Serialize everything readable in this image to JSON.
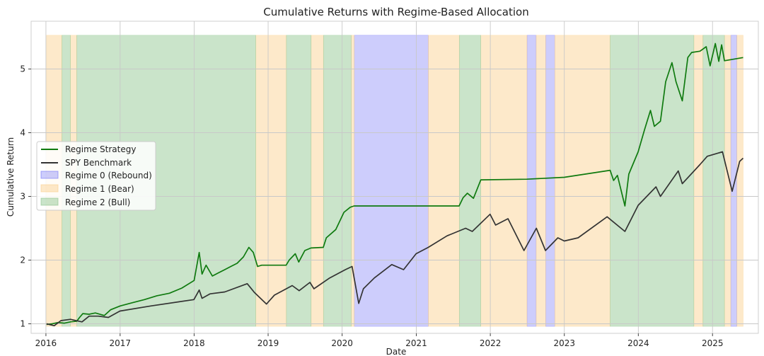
{
  "chart_data": {
    "type": "line",
    "title": "Cumulative Returns with Regime-Based Allocation",
    "xlabel": "Date",
    "ylabel": "Cumulative Return",
    "xlim": [
      "2015-10-20",
      "2025-08-15"
    ],
    "ylim": [
      0.85,
      5.75
    ],
    "x_ticks": [
      "2016",
      "2017",
      "2018",
      "2019",
      "2020",
      "2021",
      "2022",
      "2023",
      "2024",
      "2025"
    ],
    "y_ticks": [
      1,
      2,
      3,
      4,
      5
    ],
    "grid": true,
    "legend_position": "center-left",
    "series": [
      {
        "name": "Regime Strategy",
        "color": "#0f7a0f",
        "points": [
          [
            "2016-01-04",
            0.99
          ],
          [
            "2016-02-01",
            1.0
          ],
          [
            "2016-03-01",
            1.02
          ],
          [
            "2016-04-01",
            1.01
          ],
          [
            "2016-05-01",
            1.03
          ],
          [
            "2016-06-01",
            1.04
          ],
          [
            "2016-06-15",
            1.1
          ],
          [
            "2016-07-01",
            1.16
          ],
          [
            "2016-08-01",
            1.15
          ],
          [
            "2016-09-01",
            1.17
          ],
          [
            "2016-10-15",
            1.13
          ],
          [
            "2016-11-15",
            1.22
          ],
          [
            "2017-01-01",
            1.28
          ],
          [
            "2017-03-01",
            1.33
          ],
          [
            "2017-05-01",
            1.38
          ],
          [
            "2017-07-01",
            1.44
          ],
          [
            "2017-09-01",
            1.48
          ],
          [
            "2017-11-01",
            1.56
          ],
          [
            "2018-01-01",
            1.68
          ],
          [
            "2018-01-26",
            2.12
          ],
          [
            "2018-02-09",
            1.78
          ],
          [
            "2018-03-01",
            1.92
          ],
          [
            "2018-04-01",
            1.75
          ],
          [
            "2018-05-01",
            1.8
          ],
          [
            "2018-06-01",
            1.85
          ],
          [
            "2018-07-01",
            1.9
          ],
          [
            "2018-08-01",
            1.95
          ],
          [
            "2018-09-01",
            2.05
          ],
          [
            "2018-09-28",
            2.2
          ],
          [
            "2018-10-20",
            2.12
          ],
          [
            "2018-11-10",
            1.9
          ],
          [
            "2018-11-30",
            1.92
          ],
          [
            "2019-03-31",
            1.92
          ],
          [
            "2019-04-15",
            2.0
          ],
          [
            "2019-05-15",
            2.1
          ],
          [
            "2019-06-01",
            1.97
          ],
          [
            "2019-07-01",
            2.15
          ],
          [
            "2019-07-31",
            2.19
          ],
          [
            "2019-09-30",
            2.2
          ],
          [
            "2019-10-15",
            2.35
          ],
          [
            "2019-12-01",
            2.48
          ],
          [
            "2020-01-10",
            2.75
          ],
          [
            "2020-02-10",
            2.83
          ],
          [
            "2020-02-29",
            2.85
          ],
          [
            "2021-07-31",
            2.85
          ],
          [
            "2021-08-20",
            2.98
          ],
          [
            "2021-09-10",
            3.05
          ],
          [
            "2021-10-10",
            2.97
          ],
          [
            "2021-11-15",
            3.26
          ],
          [
            "2022-06-30",
            3.27
          ],
          [
            "2023-01-01",
            3.3
          ],
          [
            "2023-08-15",
            3.41
          ],
          [
            "2023-09-01",
            3.25
          ],
          [
            "2023-09-20",
            3.33
          ],
          [
            "2023-10-27",
            2.85
          ],
          [
            "2023-11-15",
            3.35
          ],
          [
            "2023-12-31",
            3.7
          ],
          [
            "2024-02-01",
            4.05
          ],
          [
            "2024-03-01",
            4.35
          ],
          [
            "2024-03-20",
            4.1
          ],
          [
            "2024-04-19",
            4.18
          ],
          [
            "2024-05-15",
            4.8
          ],
          [
            "2024-06-15",
            5.1
          ],
          [
            "2024-07-05",
            4.8
          ],
          [
            "2024-08-05",
            4.5
          ],
          [
            "2024-09-01",
            5.18
          ],
          [
            "2024-09-20",
            5.26
          ],
          [
            "2024-10-31",
            5.28
          ],
          [
            "2024-12-01",
            5.35
          ],
          [
            "2024-12-20",
            5.05
          ],
          [
            "2025-01-15",
            5.4
          ],
          [
            "2025-02-01",
            5.12
          ],
          [
            "2025-02-15",
            5.38
          ],
          [
            "2025-03-01",
            5.13
          ],
          [
            "2025-06-01",
            5.18
          ]
        ]
      },
      {
        "name": "SPY Benchmark",
        "color": "#333333",
        "points": [
          [
            "2016-01-04",
            1.0
          ],
          [
            "2016-02-11",
            0.97
          ],
          [
            "2016-03-15",
            1.05
          ],
          [
            "2016-05-01",
            1.07
          ],
          [
            "2016-06-27",
            1.03
          ],
          [
            "2016-08-01",
            1.12
          ],
          [
            "2016-09-15",
            1.12
          ],
          [
            "2016-11-04",
            1.1
          ],
          [
            "2016-12-31",
            1.2
          ],
          [
            "2017-06-01",
            1.28
          ],
          [
            "2017-12-31",
            1.38
          ],
          [
            "2018-01-26",
            1.53
          ],
          [
            "2018-02-09",
            1.4
          ],
          [
            "2018-03-20",
            1.47
          ],
          [
            "2018-06-01",
            1.5
          ],
          [
            "2018-09-20",
            1.63
          ],
          [
            "2018-10-26",
            1.49
          ],
          [
            "2018-12-24",
            1.31
          ],
          [
            "2019-02-01",
            1.45
          ],
          [
            "2019-04-30",
            1.6
          ],
          [
            "2019-06-03",
            1.52
          ],
          [
            "2019-07-26",
            1.65
          ],
          [
            "2019-08-15",
            1.55
          ],
          [
            "2019-11-01",
            1.72
          ],
          [
            "2020-01-17",
            1.85
          ],
          [
            "2020-02-19",
            1.9
          ],
          [
            "2020-03-23",
            1.32
          ],
          [
            "2020-04-15",
            1.55
          ],
          [
            "2020-06-08",
            1.72
          ],
          [
            "2020-09-02",
            1.93
          ],
          [
            "2020-10-30",
            1.85
          ],
          [
            "2020-12-31",
            2.1
          ],
          [
            "2021-03-01",
            2.2
          ],
          [
            "2021-06-01",
            2.38
          ],
          [
            "2021-09-01",
            2.5
          ],
          [
            "2021-10-04",
            2.45
          ],
          [
            "2021-12-31",
            2.72
          ],
          [
            "2022-01-27",
            2.55
          ],
          [
            "2022-03-29",
            2.65
          ],
          [
            "2022-06-16",
            2.15
          ],
          [
            "2022-08-16",
            2.5
          ],
          [
            "2022-09-30",
            2.15
          ],
          [
            "2022-11-30",
            2.35
          ],
          [
            "2023-01-01",
            2.3
          ],
          [
            "2023-03-10",
            2.35
          ],
          [
            "2023-07-31",
            2.68
          ],
          [
            "2023-10-27",
            2.45
          ],
          [
            "2023-12-31",
            2.86
          ],
          [
            "2024-03-28",
            3.15
          ],
          [
            "2024-04-19",
            3.0
          ],
          [
            "2024-07-16",
            3.4
          ],
          [
            "2024-08-05",
            3.2
          ],
          [
            "2024-10-31",
            3.5
          ],
          [
            "2024-12-06",
            3.63
          ],
          [
            "2025-02-19",
            3.7
          ],
          [
            "2025-04-08",
            3.08
          ],
          [
            "2025-05-15",
            3.55
          ],
          [
            "2025-06-01",
            3.6
          ]
        ]
      }
    ],
    "regimes": [
      {
        "name": "Regime 0 (Rebound)",
        "color": "#6f6ff7",
        "opacity": 0.35,
        "spans": [
          [
            "2020-03-01",
            "2021-03-01"
          ],
          [
            "2022-07-01",
            "2022-08-15"
          ],
          [
            "2022-10-01",
            "2022-11-15"
          ],
          [
            "2025-04-01",
            "2025-05-01"
          ]
        ]
      },
      {
        "name": "Regime 1 (Bear)",
        "color": "#fbcf8a",
        "opacity": 0.45,
        "spans": [
          [
            "2016-01-04",
            "2016-03-20"
          ],
          [
            "2016-05-01",
            "2016-06-01"
          ],
          [
            "2018-11-01",
            "2019-04-01"
          ],
          [
            "2019-08-01",
            "2019-10-01"
          ],
          [
            "2020-02-15",
            "2020-03-01"
          ],
          [
            "2021-03-01",
            "2021-08-01"
          ],
          [
            "2021-11-15",
            "2022-07-01"
          ],
          [
            "2022-08-15",
            "2022-10-01"
          ],
          [
            "2022-11-15",
            "2023-08-15"
          ],
          [
            "2024-10-01",
            "2024-11-15"
          ],
          [
            "2025-03-01",
            "2025-04-01"
          ],
          [
            "2025-05-01",
            "2025-06-01"
          ]
        ]
      },
      {
        "name": "Regime 2 (Bull)",
        "color": "#8ac38a",
        "opacity": 0.45,
        "spans": [
          [
            "2016-03-20",
            "2016-05-01"
          ],
          [
            "2016-06-01",
            "2018-11-01"
          ],
          [
            "2019-04-01",
            "2019-08-01"
          ],
          [
            "2019-10-01",
            "2020-02-15"
          ],
          [
            "2021-08-01",
            "2021-11-15"
          ],
          [
            "2023-08-15",
            "2024-10-01"
          ],
          [
            "2024-11-15",
            "2025-03-01"
          ]
        ]
      }
    ]
  }
}
